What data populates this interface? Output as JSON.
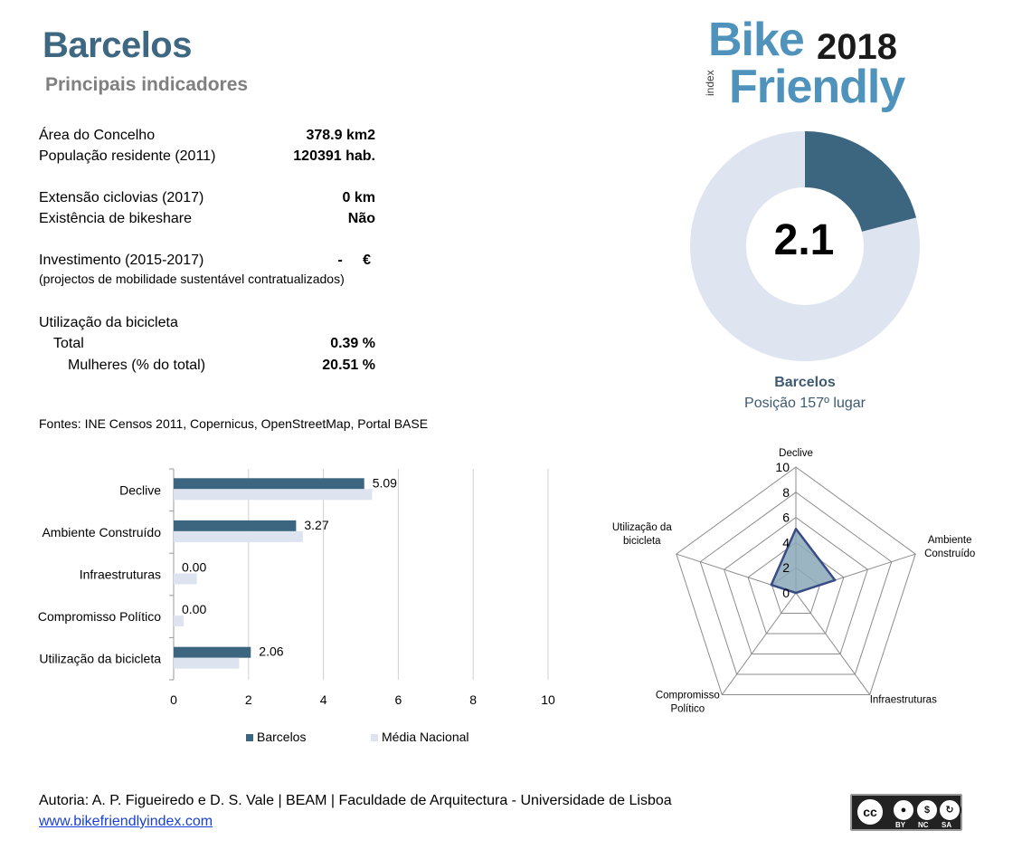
{
  "header": {
    "title": "Barcelos",
    "subtitle": "Principais indicadores"
  },
  "logo": {
    "bike": "Bike",
    "year": "2018",
    "index": "index",
    "friendly": "Friendly"
  },
  "indicators": {
    "area": {
      "label": "Área do Concelho",
      "value": "378.9 km2"
    },
    "population": {
      "label": "População residente (2011)",
      "value": "120391 hab."
    },
    "cycleways": {
      "label": "Extensão ciclovias (2017)",
      "value": "0 km"
    },
    "bikeshare": {
      "label": "Existência de bikeshare",
      "value": "Não"
    },
    "investment": {
      "label": "Investimento (2015-2017)",
      "value": "-     €",
      "note": "(projectos de mobilidade sustentável contratualizados)"
    },
    "usage": {
      "label": "Utilização da bicicleta"
    },
    "usage_total": {
      "label": "Total",
      "value": "0.39 %"
    },
    "usage_women": {
      "label": "Mulheres (% do total)",
      "value": "20.51 %"
    }
  },
  "sources": "Fontes: INE Censos 2011, Copernicus, OpenStreetMap,  Portal BASE",
  "ranking": {
    "score": "2.1",
    "score_value": 2.1,
    "score_max": 10,
    "name": "Barcelos",
    "position": "Posição 157º lugar"
  },
  "footer": {
    "authors": "Autoria: A. P. Figueiredo e D. S. Vale | BEAM | Faculdade de Arquitectura - Universidade de Lisboa",
    "link": "www.bikefriendlyindex.com",
    "license": {
      "by": "BY",
      "nc": "NC",
      "sa": "SA"
    }
  },
  "colors": {
    "accent": "#3c6680",
    "national": "#dde4f0",
    "donut_bg": "#dfe5f0",
    "radar_fill": "#8ba8b8",
    "radar_stroke": "#3a4c85"
  },
  "chart_data": [
    {
      "type": "bar",
      "orientation": "horizontal",
      "categories": [
        "Declive",
        "Ambiente Construído",
        "Infraestruturas",
        "Compromisso Político",
        "Utilização da bicicleta"
      ],
      "series": [
        {
          "name": "Barcelos",
          "values": [
            5.09,
            3.27,
            0.0,
            0.0,
            2.06
          ],
          "labels": [
            "5.09",
            "3.27",
            "0.00",
            "0.00",
            "2.06"
          ],
          "color": "#3c6680"
        },
        {
          "name": "Média Nacional",
          "values": [
            5.3,
            3.45,
            0.62,
            0.27,
            1.75
          ],
          "color": "#dde4f0"
        }
      ],
      "xlim": [
        0,
        10
      ],
      "xticks": [
        "0",
        "2",
        "4",
        "6",
        "8",
        "10"
      ],
      "grid": true,
      "legend": "bottom"
    },
    {
      "type": "radar",
      "axes": [
        "Declive",
        "Ambiente Construído",
        "Infraestruturas",
        "Compromisso Político",
        "Utilização da bicicleta"
      ],
      "axis_labels": [
        [
          "Declive"
        ],
        [
          "Ambiente",
          "Construído"
        ],
        [
          "Infraestruturas"
        ],
        [
          "Compromisso",
          "Político"
        ],
        [
          "Utilização da",
          "bicicleta"
        ]
      ],
      "series": [
        {
          "values": [
            5.09,
            3.27,
            0.0,
            0.0,
            2.06
          ]
        }
      ],
      "rlim": [
        0,
        10
      ],
      "rticks": [
        "0",
        "2",
        "4",
        "6",
        "8",
        "10"
      ]
    }
  ]
}
